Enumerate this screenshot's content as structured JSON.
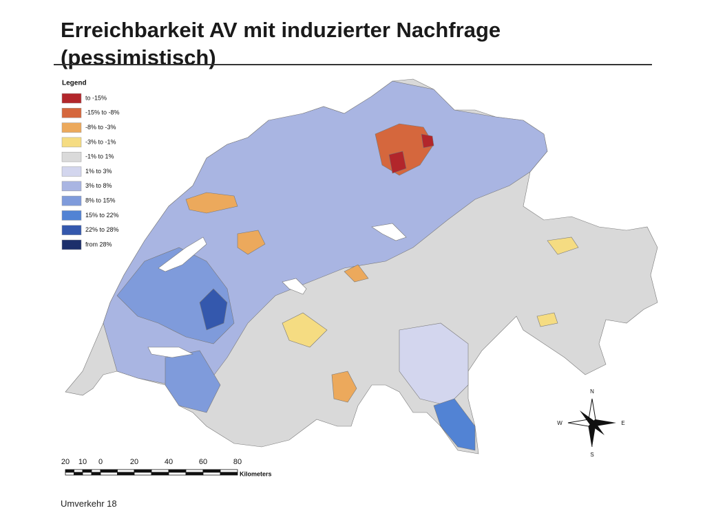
{
  "header": {
    "title_lines": [
      "Erreichbarkeit AV mit induzierter Nachfrage",
      "(pessimistisch)"
    ]
  },
  "legend": {
    "title": "Legend",
    "items": [
      {
        "label": "to -15%",
        "color": "#b2262b"
      },
      {
        "label": "-15% to -8%",
        "color": "#d5673d"
      },
      {
        "label": "-8% to -3%",
        "color": "#eca95c"
      },
      {
        "label": "-3% to -1%",
        "color": "#f5dc82"
      },
      {
        "label": "-1% to 1%",
        "color": "#dadada"
      },
      {
        "label": "1% to 3%",
        "color": "#d3d6ee"
      },
      {
        "label": "3% to 8%",
        "color": "#a9b5e2"
      },
      {
        "label": "8% to 15%",
        "color": "#7f9bdb"
      },
      {
        "label": "15% to 22%",
        "color": "#5283d4"
      },
      {
        "label": "22% to 28%",
        "color": "#3458ad"
      },
      {
        "label": "from 28%",
        "color": "#1c2f6b"
      }
    ]
  },
  "scale_bar": {
    "labels": [
      "20",
      "10",
      "0",
      "20",
      "40",
      "60",
      "80"
    ],
    "unit": "Kilometers"
  },
  "compass": {
    "north": "N",
    "east": "E",
    "south": "S",
    "west": "W"
  },
  "footer": "Umverkehr 18"
}
